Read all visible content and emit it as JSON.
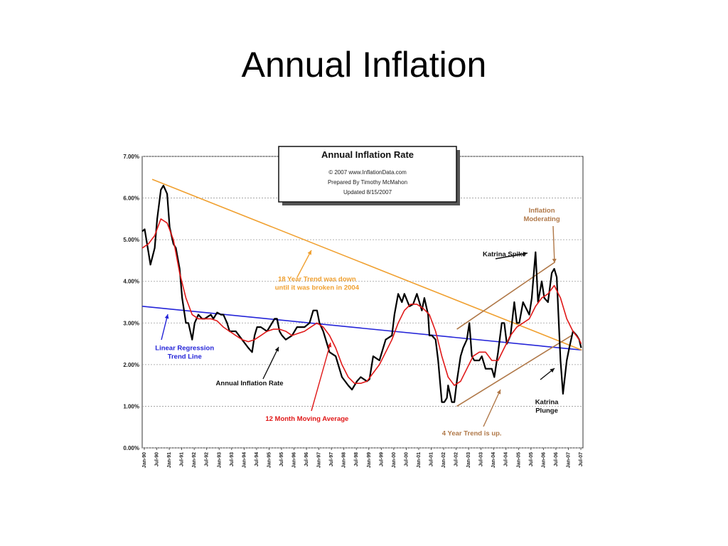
{
  "slide": {
    "title": "Annual Inflation"
  },
  "chart_data": {
    "type": "line",
    "title": "Annual  Inflation Rate",
    "info_lines": [
      "© 2007 www.InflationData.com",
      "Prepared By Timothy McMahon",
      "Updated 8/15/2007"
    ],
    "ylim": [
      0,
      7
    ],
    "y_ticks": [
      "0.00%",
      "1.00%",
      "2.00%",
      "3.00%",
      "4.00%",
      "5.00%",
      "6.00%",
      "7.00%"
    ],
    "x_ticks": [
      "Jan-90",
      "Jul-90",
      "Jan-91",
      "Jul-91",
      "Jan-92",
      "Jul-92",
      "Jan-93",
      "Jul-93",
      "Jan-94",
      "Jul-94",
      "Jan-95",
      "Jul-95",
      "Jan-96",
      "Jul-96",
      "Jan-97",
      "Jul-97",
      "Jan-98",
      "Jul-98",
      "Jan-99",
      "Jul-99",
      "Jan-00",
      "Jul-00",
      "Jan-01",
      "Jul-01",
      "Jan-02",
      "Jul-02",
      "Jan-03",
      "Jul-03",
      "Jan-04",
      "Jul-04",
      "Jan-05",
      "Jul-05",
      "Jan-06",
      "Jul-06",
      "Jan-07",
      "Jul-07"
    ],
    "series": [
      {
        "label": "Annual Inflation Rate",
        "color": "#000000",
        "points": [
          [
            1990.0,
            5.2
          ],
          [
            1990.1,
            5.25
          ],
          [
            1990.25,
            4.7
          ],
          [
            1990.33,
            4.4
          ],
          [
            1990.5,
            4.8
          ],
          [
            1990.6,
            5.5
          ],
          [
            1990.75,
            6.2
          ],
          [
            1990.85,
            6.3
          ],
          [
            1991.0,
            6.1
          ],
          [
            1991.1,
            5.3
          ],
          [
            1991.25,
            4.9
          ],
          [
            1991.35,
            4.8
          ],
          [
            1991.5,
            4.3
          ],
          [
            1991.6,
            3.6
          ],
          [
            1991.75,
            3.0
          ],
          [
            1991.85,
            3.0
          ],
          [
            1992.0,
            2.6
          ],
          [
            1992.1,
            3.0
          ],
          [
            1992.25,
            3.2
          ],
          [
            1992.4,
            3.1
          ],
          [
            1992.5,
            3.1
          ],
          [
            1992.75,
            3.2
          ],
          [
            1992.85,
            3.1
          ],
          [
            1993.0,
            3.25
          ],
          [
            1993.15,
            3.2
          ],
          [
            1993.25,
            3.2
          ],
          [
            1993.4,
            3.0
          ],
          [
            1993.5,
            2.8
          ],
          [
            1993.75,
            2.8
          ],
          [
            1994.0,
            2.6
          ],
          [
            1994.25,
            2.4
          ],
          [
            1994.4,
            2.3
          ],
          [
            1994.5,
            2.7
          ],
          [
            1994.6,
            2.9
          ],
          [
            1994.75,
            2.9
          ],
          [
            1995.0,
            2.8
          ],
          [
            1995.2,
            3.0
          ],
          [
            1995.3,
            3.1
          ],
          [
            1995.4,
            3.1
          ],
          [
            1995.5,
            2.8
          ],
          [
            1995.6,
            2.7
          ],
          [
            1995.75,
            2.6
          ],
          [
            1996.0,
            2.7
          ],
          [
            1996.2,
            2.9
          ],
          [
            1996.4,
            2.9
          ],
          [
            1996.5,
            2.9
          ],
          [
            1996.7,
            3.0
          ],
          [
            1996.85,
            3.3
          ],
          [
            1997.0,
            3.3
          ],
          [
            1997.1,
            3.0
          ],
          [
            1997.25,
            2.8
          ],
          [
            1997.5,
            2.3
          ],
          [
            1997.75,
            2.2
          ],
          [
            1998.0,
            1.7
          ],
          [
            1998.25,
            1.5
          ],
          [
            1998.4,
            1.4
          ],
          [
            1998.6,
            1.6
          ],
          [
            1998.75,
            1.7
          ],
          [
            1999.0,
            1.6
          ],
          [
            1999.1,
            1.65
          ],
          [
            1999.25,
            2.2
          ],
          [
            1999.5,
            2.1
          ],
          [
            1999.75,
            2.6
          ],
          [
            2000.0,
            2.7
          ],
          [
            2000.1,
            3.2
          ],
          [
            2000.25,
            3.7
          ],
          [
            2000.4,
            3.5
          ],
          [
            2000.5,
            3.7
          ],
          [
            2000.7,
            3.4
          ],
          [
            2000.85,
            3.45
          ],
          [
            2001.0,
            3.7
          ],
          [
            2001.2,
            3.3
          ],
          [
            2001.3,
            3.6
          ],
          [
            2001.45,
            3.2
          ],
          [
            2001.5,
            2.7
          ],
          [
            2001.6,
            2.7
          ],
          [
            2001.75,
            2.6
          ],
          [
            2001.85,
            2.1
          ],
          [
            2002.0,
            1.1
          ],
          [
            2002.1,
            1.1
          ],
          [
            2002.2,
            1.2
          ],
          [
            2002.25,
            1.5
          ],
          [
            2002.4,
            1.1
          ],
          [
            2002.5,
            1.1
          ],
          [
            2002.6,
            1.6
          ],
          [
            2002.75,
            2.2
          ],
          [
            2002.85,
            2.4
          ],
          [
            2003.0,
            2.6
          ],
          [
            2003.1,
            3.0
          ],
          [
            2003.2,
            2.2
          ],
          [
            2003.3,
            2.1
          ],
          [
            2003.5,
            2.1
          ],
          [
            2003.6,
            2.2
          ],
          [
            2003.75,
            1.9
          ],
          [
            2003.9,
            1.9
          ],
          [
            2004.0,
            1.9
          ],
          [
            2004.1,
            1.7
          ],
          [
            2004.25,
            2.3
          ],
          [
            2004.4,
            3.0
          ],
          [
            2004.5,
            3.0
          ],
          [
            2004.6,
            2.5
          ],
          [
            2004.75,
            2.7
          ],
          [
            2004.9,
            3.5
          ],
          [
            2005.0,
            3.0
          ],
          [
            2005.1,
            3.0
          ],
          [
            2005.25,
            3.5
          ],
          [
            2005.5,
            3.2
          ],
          [
            2005.6,
            3.6
          ],
          [
            2005.75,
            4.7
          ],
          [
            2005.85,
            3.5
          ],
          [
            2006.0,
            4.0
          ],
          [
            2006.1,
            3.6
          ],
          [
            2006.25,
            3.5
          ],
          [
            2006.4,
            4.2
          ],
          [
            2006.5,
            4.3
          ],
          [
            2006.6,
            4.1
          ],
          [
            2006.75,
            2.1
          ],
          [
            2006.85,
            1.3
          ],
          [
            2007.0,
            2.1
          ],
          [
            2007.1,
            2.4
          ],
          [
            2007.25,
            2.8
          ],
          [
            2007.4,
            2.7
          ],
          [
            2007.5,
            2.6
          ],
          [
            2007.58,
            2.4
          ]
        ]
      },
      {
        "label": "12 Month Moving Average",
        "color": "#e01818",
        "points": [
          [
            1990.0,
            4.8
          ],
          [
            1990.25,
            4.9
          ],
          [
            1990.5,
            5.1
          ],
          [
            1990.75,
            5.5
          ],
          [
            1991.0,
            5.4
          ],
          [
            1991.25,
            5.0
          ],
          [
            1991.5,
            4.2
          ],
          [
            1991.75,
            3.6
          ],
          [
            1992.0,
            3.2
          ],
          [
            1992.25,
            3.1
          ],
          [
            1992.5,
            3.1
          ],
          [
            1992.75,
            3.1
          ],
          [
            1993.0,
            3.05
          ],
          [
            1993.25,
            2.9
          ],
          [
            1993.5,
            2.8
          ],
          [
            1993.75,
            2.7
          ],
          [
            1994.0,
            2.6
          ],
          [
            1994.25,
            2.55
          ],
          [
            1994.5,
            2.6
          ],
          [
            1994.75,
            2.7
          ],
          [
            1995.0,
            2.8
          ],
          [
            1995.25,
            2.85
          ],
          [
            1995.5,
            2.85
          ],
          [
            1995.75,
            2.8
          ],
          [
            1996.0,
            2.7
          ],
          [
            1996.25,
            2.75
          ],
          [
            1996.5,
            2.8
          ],
          [
            1996.75,
            2.9
          ],
          [
            1997.0,
            3.0
          ],
          [
            1997.25,
            2.9
          ],
          [
            1997.5,
            2.7
          ],
          [
            1997.75,
            2.4
          ],
          [
            1998.0,
            2.0
          ],
          [
            1998.25,
            1.7
          ],
          [
            1998.5,
            1.55
          ],
          [
            1998.75,
            1.55
          ],
          [
            1999.0,
            1.6
          ],
          [
            1999.25,
            1.8
          ],
          [
            1999.5,
            2.0
          ],
          [
            1999.75,
            2.3
          ],
          [
            2000.0,
            2.6
          ],
          [
            2000.25,
            3.0
          ],
          [
            2000.5,
            3.3
          ],
          [
            2000.75,
            3.45
          ],
          [
            2001.0,
            3.45
          ],
          [
            2001.25,
            3.35
          ],
          [
            2001.5,
            3.2
          ],
          [
            2001.75,
            2.8
          ],
          [
            2002.0,
            2.2
          ],
          [
            2002.25,
            1.7
          ],
          [
            2002.5,
            1.5
          ],
          [
            2002.75,
            1.6
          ],
          [
            2003.0,
            1.9
          ],
          [
            2003.25,
            2.2
          ],
          [
            2003.5,
            2.3
          ],
          [
            2003.75,
            2.3
          ],
          [
            2004.0,
            2.1
          ],
          [
            2004.25,
            2.1
          ],
          [
            2004.5,
            2.4
          ],
          [
            2004.75,
            2.7
          ],
          [
            2005.0,
            2.9
          ],
          [
            2005.25,
            3.0
          ],
          [
            2005.5,
            3.1
          ],
          [
            2005.75,
            3.4
          ],
          [
            2006.0,
            3.6
          ],
          [
            2006.25,
            3.7
          ],
          [
            2006.5,
            3.9
          ],
          [
            2006.75,
            3.6
          ],
          [
            2007.0,
            3.1
          ],
          [
            2007.25,
            2.8
          ],
          [
            2007.5,
            2.6
          ],
          [
            2007.58,
            2.5
          ]
        ]
      }
    ],
    "trend_lines": [
      {
        "label": "Linear Regression Trend Line",
        "color": "#2424d8",
        "points": [
          [
            1990.0,
            3.4
          ],
          [
            2007.6,
            2.35
          ]
        ]
      },
      {
        "label": "18 Year Trend",
        "color": "#f0a030",
        "points": [
          [
            1990.4,
            6.45
          ],
          [
            2007.6,
            2.35
          ]
        ]
      },
      {
        "label": "4 Year Trend upper",
        "color": "#b07848",
        "points": [
          [
            2002.6,
            2.85
          ],
          [
            2006.5,
            4.45
          ]
        ]
      },
      {
        "label": "4 Year Trend lower",
        "color": "#b07848",
        "points": [
          [
            2002.6,
            1.0
          ],
          [
            2007.2,
            2.7
          ]
        ]
      }
    ],
    "annotations": [
      {
        "key": "trend18",
        "lines": [
          "18 Year Trend was down",
          "until it was broken in 2004"
        ],
        "color": "#f0a030",
        "x": 1997.0,
        "y": 4.0
      },
      {
        "key": "katrina_spike",
        "lines": [
          "Katrina Spike"
        ],
        "color": "#111111",
        "x": 2004.5,
        "y": 4.6
      },
      {
        "key": "moderating",
        "lines": [
          "Inflation",
          "Moderating"
        ],
        "color": "#b07848",
        "x": 2006.0,
        "y": 5.65
      },
      {
        "key": "linreg",
        "lines": [
          "Linear Regression",
          "Trend Line"
        ],
        "color": "#2424d8",
        "x": 1991.7,
        "y": 2.35
      },
      {
        "key": "annual",
        "lines": [
          "Annual Inflation Rate"
        ],
        "color": "#111111",
        "x": 1994.3,
        "y": 1.5
      },
      {
        "key": "moving",
        "lines": [
          "12 Month Moving Average"
        ],
        "color": "#e01818",
        "x": 1996.6,
        "y": 0.65
      },
      {
        "key": "trend4",
        "lines": [
          "4 Year Trend is up."
        ],
        "color": "#b07848",
        "x": 2003.2,
        "y": 0.3
      },
      {
        "key": "plunge",
        "lines": [
          "Katrina",
          "Plunge"
        ],
        "color": "#111111",
        "x": 2006.2,
        "y": 1.05
      }
    ]
  }
}
